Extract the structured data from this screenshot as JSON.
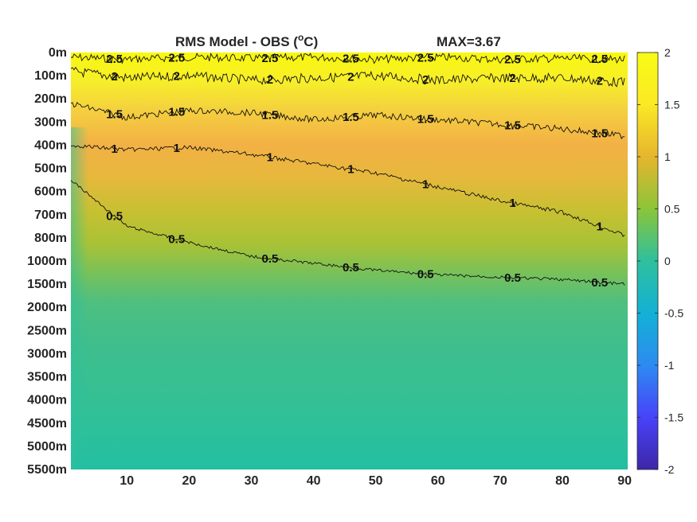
{
  "chart_data": {
    "type": "heatmap",
    "title": "RMS Model - OBS (",
    "title_super": "o",
    "title_tail": "C)",
    "max_label": "MAX=3.67",
    "x_ticks": [
      10,
      20,
      30,
      40,
      50,
      60,
      70,
      80,
      90
    ],
    "x_range": [
      1,
      90.5
    ],
    "y_tick_labels": [
      "0m",
      "100m",
      "200m",
      "300m",
      "400m",
      "500m",
      "600m",
      "700m",
      "800m",
      "1000m",
      "1500m",
      "2000m",
      "2500m",
      "3000m",
      "3500m",
      "4000m",
      "4500m",
      "5000m",
      "5500m"
    ],
    "colorbar": {
      "min": -2,
      "max": 2,
      "tick_labels": [
        "2",
        "1.5",
        "1",
        "0.5",
        "0",
        "-0.5",
        "-1",
        "-1.5",
        "-2"
      ],
      "colormap": [
        "#3e26a8",
        "#4743f9",
        "#2d8bf1",
        "#13b1d5",
        "#2ec09d",
        "#8bc539",
        "#e6b52e",
        "#fae924",
        "#f9fb15"
      ]
    },
    "contours": [
      {
        "level": 2.5,
        "label": "2.5",
        "depth_index": [
          0.2,
          0.3,
          0.2,
          0.25,
          0.2,
          0.3,
          0.2,
          0.3,
          0.25,
          0.3
        ]
      },
      {
        "level": 2,
        "label": "2",
        "depth_index": [
          0.8,
          1.1,
          1.0,
          1.2,
          1.1,
          1.0,
          1.2,
          1.1,
          1.1,
          1.3
        ]
      },
      {
        "level": 1.5,
        "label": "1.5",
        "depth_index": [
          2.2,
          2.8,
          2.5,
          2.6,
          2.9,
          2.7,
          2.9,
          3.1,
          3.3,
          3.6
        ]
      },
      {
        "level": 1,
        "label": "1",
        "depth_index": [
          4.0,
          4.2,
          4.1,
          4.4,
          4.8,
          5.2,
          5.8,
          6.4,
          6.9,
          7.9
        ]
      },
      {
        "level": 0.5,
        "label": "0.5",
        "depth_index": [
          5.5,
          7.5,
          8.2,
          8.8,
          9.1,
          9.4,
          9.6,
          9.7,
          9.8,
          10.0
        ]
      }
    ],
    "contour_x": [
      1,
      10,
      20,
      30,
      40,
      50,
      60,
      70,
      80,
      90
    ]
  }
}
